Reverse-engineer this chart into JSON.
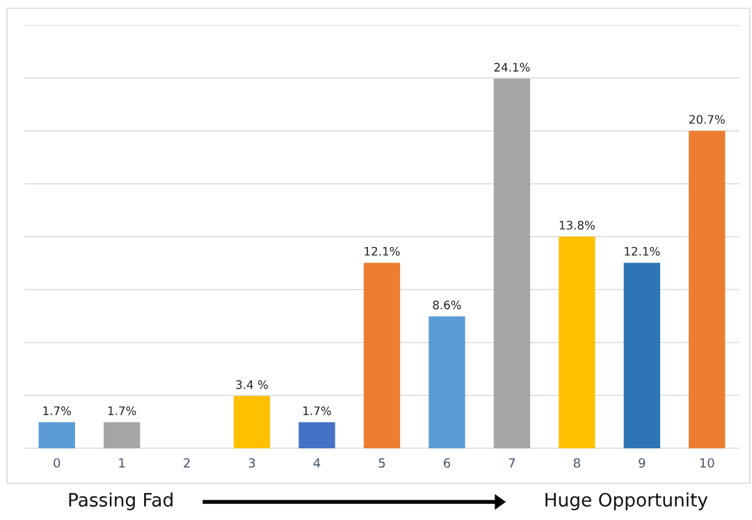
{
  "chart_data": {
    "type": "bar",
    "categories": [
      "0",
      "1",
      "2",
      "3",
      "4",
      "5",
      "6",
      "7",
      "8",
      "9",
      "10"
    ],
    "values": [
      1.7,
      1.7,
      0,
      3.4,
      1.7,
      12.1,
      8.6,
      24.1,
      13.8,
      12.1,
      20.7
    ],
    "value_labels": [
      "1.7%",
      "1.7%",
      null,
      "3.4 %",
      "1.7%",
      "12.1%",
      "8.6%",
      "24.1%",
      "13.8%",
      "12.1%",
      "20.7%"
    ],
    "colors": [
      "#5b9bd5",
      "#a5a5a5",
      "#a5a5a5",
      "#ffc000",
      "#4472c4",
      "#ed7d31",
      "#5b9bd5",
      "#a5a5a5",
      "#ffc000",
      "#2e75b6",
      "#ed7d31"
    ],
    "ylim": [
      0,
      27.6
    ],
    "yticks": [
      {
        "value": 0,
        "label": null
      },
      {
        "value": 3.45,
        "label": null
      },
      {
        "value": 6.9,
        "label": null
      },
      {
        "value": 10.35,
        "label": null
      },
      {
        "value": 13.8,
        "label": null
      },
      {
        "value": 17.25,
        "label": null
      },
      {
        "value": 20.7,
        "label": null
      },
      {
        "value": 24.15,
        "label": null
      },
      {
        "value": 27.6,
        "label": null
      }
    ],
    "grid": "y",
    "tick_labels": "x",
    "annotations": [
      "Passing Fad",
      "Huge Opportunity"
    ]
  }
}
